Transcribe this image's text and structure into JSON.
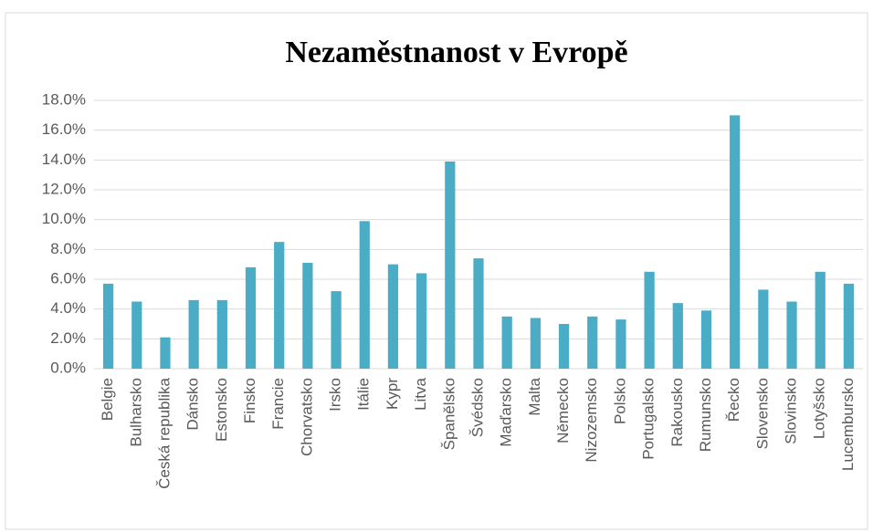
{
  "chart_data": {
    "type": "bar",
    "title": "Nezaměstnanost v Evropě",
    "categories": [
      "Belgie",
      "Bulharsko",
      "Česká republika",
      "Dánsko",
      "Estonsko",
      "Finsko",
      "Francie",
      "Chorvatsko",
      "Irsko",
      "Itálie",
      "Kypr",
      "Litva",
      "Španělsko",
      "Švédsko",
      "Maďarsko",
      "Malta",
      "Německo",
      "Nizozemsko",
      "Polsko",
      "Portugalsko",
      "Rakousko",
      "Rumunsko",
      "Řecko",
      "Slovensko",
      "Slovinsko",
      "Lotyšsko",
      "Lucembursko"
    ],
    "values": [
      5.7,
      4.5,
      2.1,
      4.6,
      4.6,
      6.8,
      8.5,
      7.1,
      5.2,
      9.9,
      7.0,
      6.4,
      13.9,
      7.4,
      3.5,
      3.4,
      3.0,
      3.5,
      3.3,
      6.5,
      4.4,
      3.9,
      17.0,
      5.3,
      4.5,
      6.5,
      5.7
    ],
    "color": "#4bacc6",
    "ylim": [
      0,
      18
    ],
    "yticks": [
      {
        "value": 0,
        "label": "0.0%"
      },
      {
        "value": 2,
        "label": "2.0%"
      },
      {
        "value": 4,
        "label": "4.0%"
      },
      {
        "value": 6,
        "label": "6.0%"
      },
      {
        "value": 8,
        "label": "8.0%"
      },
      {
        "value": 10,
        "label": "10.0%"
      },
      {
        "value": 12,
        "label": "12.0%"
      },
      {
        "value": 14,
        "label": "14.0%"
      },
      {
        "value": 16,
        "label": "16.0%"
      },
      {
        "value": 18,
        "label": "18.0%"
      }
    ],
    "grid": true
  }
}
